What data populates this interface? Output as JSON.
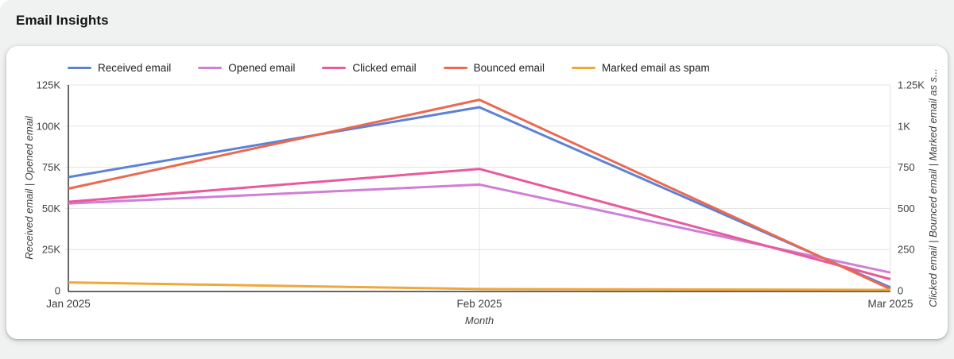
{
  "page": {
    "title": "Email Insights"
  },
  "legend": [
    {
      "label": "Received email",
      "color": "#5c82d7"
    },
    {
      "label": "Opened email",
      "color": "#cf7fd6"
    },
    {
      "label": "Clicked email",
      "color": "#e85a9b"
    },
    {
      "label": "Bounced email",
      "color": "#eb6950"
    },
    {
      "label": "Marked email as spam",
      "color": "#f0a73b"
    }
  ],
  "chart_data": {
    "type": "line",
    "x": [
      "Jan 2025",
      "Feb 2025",
      "Mar 2025"
    ],
    "xlabel": "Month",
    "grid": true,
    "legend_position": "top",
    "left_axis": {
      "title": "Received email | Opened email",
      "ticks": [
        "125K",
        "100K",
        "75K",
        "50K",
        "25K",
        "0"
      ],
      "range": [
        0,
        125000
      ]
    },
    "right_axis": {
      "title": "Clicked email | Bounced email | Marked email as s...",
      "ticks": [
        "1.25K",
        "1K",
        "750",
        "500",
        "250",
        "0"
      ],
      "range": [
        0,
        1250
      ]
    },
    "series": [
      {
        "name": "Received email",
        "axis": "left",
        "color": "#5c82d7",
        "values": [
          69000,
          111500,
          2000
        ]
      },
      {
        "name": "Opened email",
        "axis": "left",
        "color": "#cf7fd6",
        "values": [
          53000,
          64500,
          11000
        ]
      },
      {
        "name": "Clicked email",
        "axis": "right",
        "color": "#e85a9b",
        "values": [
          540,
          740,
          70
        ]
      },
      {
        "name": "Bounced email",
        "axis": "right",
        "color": "#eb6950",
        "values": [
          620,
          1160,
          10
        ]
      },
      {
        "name": "Marked email as spam",
        "axis": "right",
        "color": "#f0a73b",
        "values": [
          50,
          10,
          5
        ]
      }
    ],
    "colors": {
      "gridline": "#e3e3e3",
      "axis_line": "#333333",
      "tick_text": "#3c4043"
    }
  }
}
